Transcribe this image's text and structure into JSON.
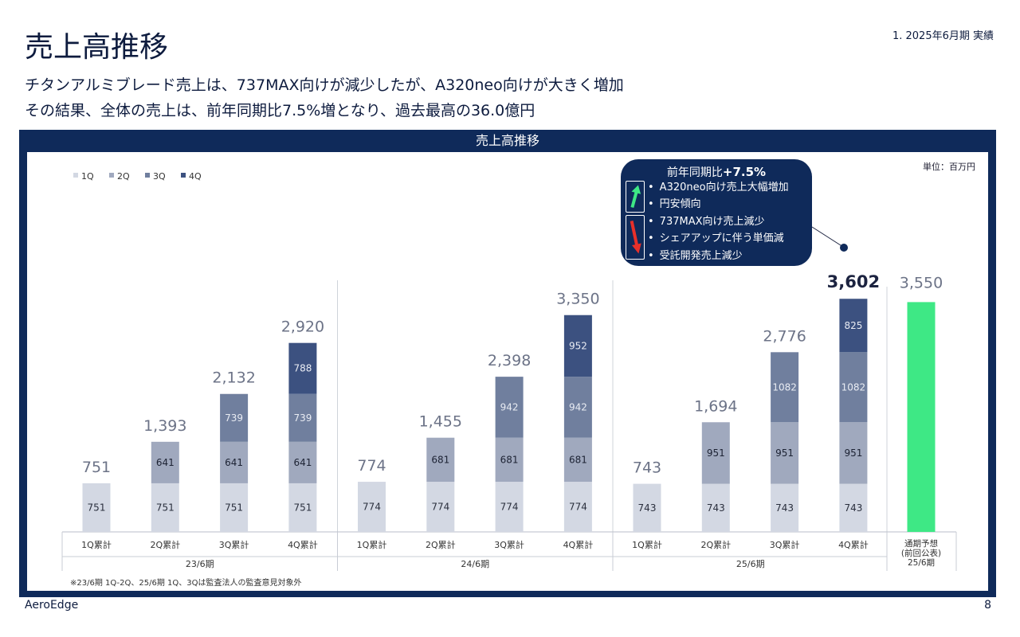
{
  "page": {
    "title": "売上高推移",
    "section": "1. 2025年6月期 実績",
    "subtitle1": "チタンアルミブレード売上は、737MAX向けが減少したが、A320neo向けが大きく増加",
    "subtitle2": "その結果、全体の売上は、前年同期比7.5%増となり、過去最高の36.0億円",
    "footer_company": "AeroEdge",
    "page_number": "8"
  },
  "chart_frame_title": "売上高推移",
  "unit_label": "単位：百万円",
  "callout": {
    "head_prefix": "前年同期比",
    "head_value": "+7.5%",
    "up_items": [
      "A320neo向け売上大幅増加",
      "円安傾向"
    ],
    "down_items": [
      "737MAX向け売上減少",
      "シェアアップに伴う単価減",
      "受託開発売上減少"
    ]
  },
  "colors": {
    "q1": "#d3d8e3",
    "q2": "#a0a9be",
    "q3": "#707f9e",
    "q4": "#3c5180",
    "forecast": "#3ee885",
    "frame": "#0f2a5a",
    "up_arrow": "#3ee885",
    "down_arrow": "#e8302a"
  },
  "chart_data": {
    "type": "bar",
    "stacked": true,
    "legend": [
      "1Q",
      "2Q",
      "3Q",
      "4Q"
    ],
    "legend_position": "top-left",
    "groups": [
      {
        "period": "23/6期",
        "bars": [
          {
            "label": "1Q累計",
            "segments": [
              751
            ],
            "total": "751"
          },
          {
            "label": "2Q累計",
            "segments": [
              751,
              641
            ],
            "total": "1,393"
          },
          {
            "label": "3Q累計",
            "segments": [
              751,
              641,
              739
            ],
            "total": "2,132"
          },
          {
            "label": "4Q累計",
            "segments": [
              751,
              641,
              739,
              788
            ],
            "total": "2,920"
          }
        ]
      },
      {
        "period": "24/6期",
        "bars": [
          {
            "label": "1Q累計",
            "segments": [
              774
            ],
            "total": "774"
          },
          {
            "label": "2Q累計",
            "segments": [
              774,
              681
            ],
            "total": "1,455"
          },
          {
            "label": "3Q累計",
            "segments": [
              774,
              681,
              942
            ],
            "total": "2,398"
          },
          {
            "label": "4Q累計",
            "segments": [
              774,
              681,
              942,
              952
            ],
            "total": "3,350"
          }
        ]
      },
      {
        "period": "25/6期",
        "bars": [
          {
            "label": "1Q累計",
            "segments": [
              743
            ],
            "total": "743"
          },
          {
            "label": "2Q累計",
            "segments": [
              743,
              951
            ],
            "total": "1,694"
          },
          {
            "label": "3Q累計",
            "segments": [
              743,
              951,
              1082
            ],
            "total": "2,776"
          },
          {
            "label": "4Q累計",
            "segments": [
              743,
              951,
              1082,
              825
            ],
            "total": "3,602",
            "highlight": true
          }
        ]
      }
    ],
    "forecast": {
      "value": 3550,
      "total": "3,550",
      "label_lines": [
        "通期予想",
        "(前回公表)",
        "25/6期"
      ]
    },
    "note": "※23/6期 1Q-2Q、25/6期 1Q、3Qは監査法人の監査意見対象外"
  }
}
